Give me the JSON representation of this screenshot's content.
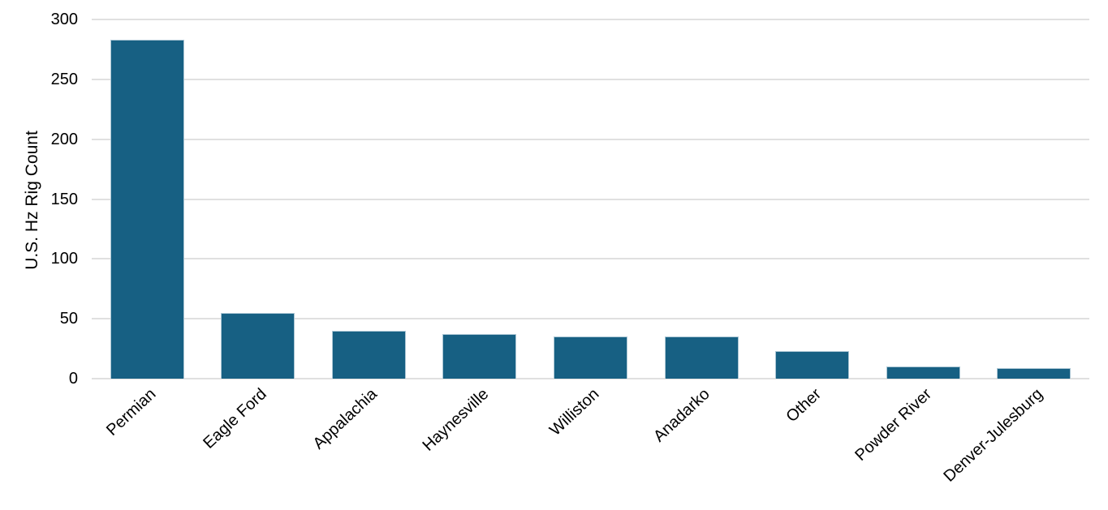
{
  "chart_data": {
    "type": "bar",
    "title": "",
    "xlabel": "",
    "ylabel": "U.S. Hz Rig Count",
    "categories": [
      "Permian",
      "Eagle Ford",
      "Appalachia",
      "Haynesville",
      "Williston",
      "Anadarko",
      "Other",
      "Powder River",
      "Denver-Julesburg"
    ],
    "values": [
      283,
      55,
      40,
      37,
      35,
      35,
      23,
      10,
      9
    ],
    "ylim": [
      0,
      300
    ],
    "yticks": [
      0,
      50,
      100,
      150,
      200,
      250,
      300
    ],
    "grid": true,
    "legend_position": "none",
    "x_label_rotation_deg": 43,
    "colors": {
      "bar_fill": "#176083",
      "bar_edge": "#abc6d4",
      "gridline": "#e0e0e0",
      "text": "#000000",
      "background": "#ffffff"
    }
  }
}
